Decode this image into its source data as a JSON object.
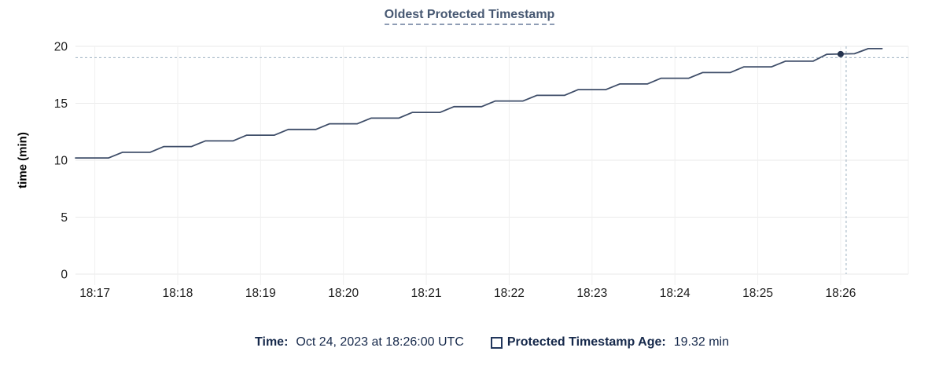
{
  "title": "Oldest Protected Timestamp",
  "tooltip": {
    "time_label": "Time:",
    "time_value": "Oct 24, 2023 at 18:26:00 UTC",
    "series_label": "Protected Timestamp Age:",
    "series_value": "19.32 min",
    "legend_marker": "square-outline"
  },
  "chart_data": {
    "type": "line",
    "title": "Oldest Protected Timestamp",
    "xlabel": "",
    "ylabel": "time (min)",
    "ylim": [
      0,
      20
    ],
    "y_ticks": [
      0,
      5,
      10,
      15,
      20
    ],
    "x_ticks": [
      "18:17",
      "18:18",
      "18:19",
      "18:20",
      "18:21",
      "18:22",
      "18:23",
      "18:24",
      "18:25",
      "18:26"
    ],
    "x_domain": [
      "18:16:46",
      "18:26:49"
    ],
    "grid": true,
    "legend_position": "bottom",
    "series": [
      {
        "name": "Protected Timestamp Age",
        "unit": "min",
        "points": [
          [
            "18:16:46",
            10.2
          ],
          [
            "18:17:10",
            10.2
          ],
          [
            "18:17:20",
            10.7
          ],
          [
            "18:17:40",
            10.7
          ],
          [
            "18:17:50",
            11.2
          ],
          [
            "18:18:10",
            11.2
          ],
          [
            "18:18:20",
            11.7
          ],
          [
            "18:18:40",
            11.7
          ],
          [
            "18:18:50",
            12.2
          ],
          [
            "18:19:10",
            12.2
          ],
          [
            "18:19:20",
            12.7
          ],
          [
            "18:19:40",
            12.7
          ],
          [
            "18:19:50",
            13.2
          ],
          [
            "18:20:10",
            13.2
          ],
          [
            "18:20:20",
            13.7
          ],
          [
            "18:20:40",
            13.7
          ],
          [
            "18:20:50",
            14.2
          ],
          [
            "18:21:10",
            14.2
          ],
          [
            "18:21:20",
            14.7
          ],
          [
            "18:21:40",
            14.7
          ],
          [
            "18:21:50",
            15.2
          ],
          [
            "18:22:10",
            15.2
          ],
          [
            "18:22:20",
            15.7
          ],
          [
            "18:22:40",
            15.7
          ],
          [
            "18:22:50",
            16.2
          ],
          [
            "18:23:10",
            16.2
          ],
          [
            "18:23:20",
            16.7
          ],
          [
            "18:23:40",
            16.7
          ],
          [
            "18:23:50",
            17.2
          ],
          [
            "18:24:10",
            17.2
          ],
          [
            "18:24:20",
            17.7
          ],
          [
            "18:24:40",
            17.7
          ],
          [
            "18:24:50",
            18.2
          ],
          [
            "18:25:10",
            18.2
          ],
          [
            "18:25:20",
            18.7
          ],
          [
            "18:25:40",
            18.7
          ],
          [
            "18:25:50",
            19.3
          ],
          [
            "18:26:10",
            19.35
          ],
          [
            "18:26:20",
            19.8
          ],
          [
            "18:26:30",
            19.8
          ]
        ]
      }
    ],
    "highlight_point": {
      "time": "18:26:00",
      "value": 19.32
    },
    "colors": {
      "line": "#3e4d68",
      "dot": "#25334f",
      "crosshair": "#9db1c1",
      "grid_h": "#eaeaea",
      "grid_v": "#f0f0f0",
      "tick_text": "#202020",
      "title": "#475872",
      "legend_text": "#16294b"
    }
  }
}
